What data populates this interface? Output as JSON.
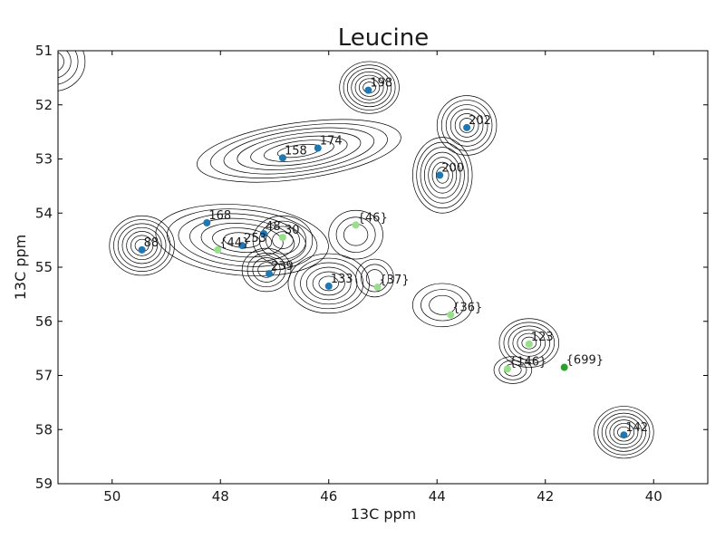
{
  "chart_data": {
    "type": "scatter",
    "title": "Leucine",
    "xlabel": "13C ppm",
    "ylabel": "13C ppm",
    "xlim": [
      51,
      39
    ],
    "ylim": [
      59,
      51
    ],
    "x_reversed": true,
    "y_reversed": true,
    "xticks": [
      "50",
      "48",
      "46",
      "44",
      "42",
      "40"
    ],
    "yticks": [
      "51",
      "52",
      "53",
      "54",
      "55",
      "56",
      "57",
      "58",
      "59"
    ],
    "xtick_values": [
      50,
      48,
      46,
      44,
      42,
      40
    ],
    "ytick_values": [
      51,
      52,
      53,
      54,
      55,
      56,
      57,
      58,
      59
    ],
    "grid": false,
    "colors": {
      "assigned": "#1f77b4",
      "bracketed": "#98df8a",
      "highlight": "#2ca02c",
      "contour": "#000000"
    },
    "contours": [
      {
        "cx": 45.25,
        "cy": 51.68,
        "rx": 0.55,
        "ry": 0.48,
        "rot": 0,
        "levels": 7
      },
      {
        "cx": 46.55,
        "cy": 52.85,
        "rx": 1.9,
        "ry": 0.52,
        "rot": -8,
        "levels": 7
      },
      {
        "cx": 43.45,
        "cy": 52.38,
        "rx": 0.55,
        "ry": 0.55,
        "rot": 0,
        "levels": 6
      },
      {
        "cx": 43.9,
        "cy": 53.3,
        "rx": 0.55,
        "ry": 0.7,
        "rot": 0,
        "levels": 7
      },
      {
        "cx": 49.45,
        "cy": 54.6,
        "rx": 0.6,
        "ry": 0.55,
        "rot": 0,
        "levels": 7
      },
      {
        "cx": 47.6,
        "cy": 54.5,
        "rx": 1.6,
        "ry": 0.65,
        "rot": 5,
        "levels": 7
      },
      {
        "cx": 46.85,
        "cy": 54.5,
        "rx": 0.55,
        "ry": 0.45,
        "rot": 0,
        "levels": 4
      },
      {
        "cx": 46.0,
        "cy": 55.3,
        "rx": 0.75,
        "ry": 0.55,
        "rot": 0,
        "levels": 6
      },
      {
        "cx": 47.15,
        "cy": 55.05,
        "rx": 0.45,
        "ry": 0.4,
        "rot": 0,
        "levels": 4
      },
      {
        "cx": 45.5,
        "cy": 54.4,
        "rx": 0.5,
        "ry": 0.45,
        "rot": 0,
        "levels": 3
      },
      {
        "cx": 45.15,
        "cy": 55.2,
        "rx": 0.35,
        "ry": 0.35,
        "rot": 0,
        "levels": 3
      },
      {
        "cx": 43.9,
        "cy": 55.7,
        "rx": 0.55,
        "ry": 0.4,
        "rot": 0,
        "levels": 3
      },
      {
        "cx": 42.3,
        "cy": 56.4,
        "rx": 0.55,
        "ry": 0.45,
        "rot": 0,
        "levels": 6
      },
      {
        "cx": 42.6,
        "cy": 56.9,
        "rx": 0.35,
        "ry": 0.25,
        "rot": 0,
        "levels": 3
      },
      {
        "cx": 40.55,
        "cy": 58.05,
        "rx": 0.55,
        "ry": 0.48,
        "rot": 0,
        "levels": 7
      },
      {
        "cx": 51.1,
        "cy": 51.2,
        "rx": 0.6,
        "ry": 0.55,
        "rot": 0,
        "levels": 4
      }
    ],
    "points": [
      {
        "label": "198",
        "x": 45.27,
        "y": 51.73,
        "kind": "assigned"
      },
      {
        "label": "202",
        "x": 43.45,
        "y": 52.42,
        "kind": "assigned"
      },
      {
        "label": "174",
        "x": 46.2,
        "y": 52.8,
        "kind": "assigned"
      },
      {
        "label": "158",
        "x": 46.85,
        "y": 52.98,
        "kind": "assigned"
      },
      {
        "label": "200",
        "x": 43.95,
        "y": 53.3,
        "kind": "assigned"
      },
      {
        "label": "168",
        "x": 48.25,
        "y": 54.18,
        "kind": "assigned"
      },
      {
        "label": "{46}",
        "x": 45.5,
        "y": 54.22,
        "kind": "bracketed"
      },
      {
        "label": "48",
        "x": 47.2,
        "y": 54.38,
        "kind": "assigned"
      },
      {
        "label": "30",
        "x": 46.85,
        "y": 54.45,
        "kind": "bracketed"
      },
      {
        "label": "253",
        "x": 47.6,
        "y": 54.6,
        "kind": "assigned"
      },
      {
        "label": "88",
        "x": 49.45,
        "y": 54.68,
        "kind": "assigned"
      },
      {
        "label": "{44}",
        "x": 48.05,
        "y": 54.68,
        "kind": "bracketed"
      },
      {
        "label": "239",
        "x": 47.1,
        "y": 55.12,
        "kind": "assigned"
      },
      {
        "label": "133",
        "x": 46.0,
        "y": 55.35,
        "kind": "assigned"
      },
      {
        "label": "{37}",
        "x": 45.1,
        "y": 55.37,
        "kind": "bracketed"
      },
      {
        "label": "{36}",
        "x": 43.75,
        "y": 55.88,
        "kind": "bracketed"
      },
      {
        "label": "123",
        "x": 42.3,
        "y": 56.42,
        "kind": "bracketed"
      },
      {
        "label": "{146}",
        "x": 42.7,
        "y": 56.88,
        "kind": "bracketed"
      },
      {
        "label": "{699}",
        "x": 41.65,
        "y": 56.85,
        "kind": "highlight"
      },
      {
        "label": "142",
        "x": 40.55,
        "y": 58.1,
        "kind": "assigned"
      }
    ]
  }
}
